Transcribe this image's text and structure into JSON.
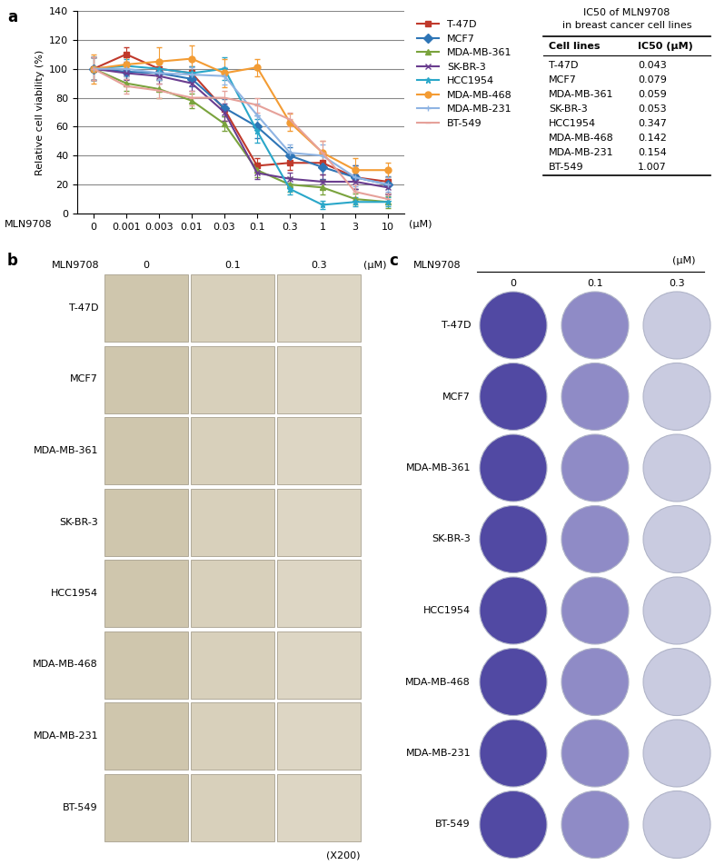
{
  "chart_data": {
    "type": "line",
    "panel": "a",
    "categories": [
      "0",
      "0.001",
      "0.003",
      "0.01",
      "0.03",
      "0.1",
      "0.3",
      "1",
      "3",
      "10"
    ],
    "xlabel": "MLN9708",
    "xunit": "(μM)",
    "ylabel": "Relative cell viability (%)",
    "ylim": [
      0,
      140
    ],
    "yticks": [
      0,
      20,
      40,
      60,
      80,
      100,
      120,
      140
    ],
    "grid": true,
    "legend": "upper left",
    "series": [
      {
        "name": "T-47D",
        "color": "#c0392b",
        "marker": "square",
        "values": [
          100,
          110,
          100,
          97,
          72,
          33,
          35,
          35,
          25,
          22
        ],
        "errors": [
          8,
          5,
          5,
          5,
          8,
          5,
          5,
          8,
          8,
          8
        ]
      },
      {
        "name": "MCF7",
        "color": "#2e75b6",
        "marker": "diamond",
        "values": [
          100,
          98,
          97,
          93,
          73,
          60,
          40,
          32,
          25,
          20
        ],
        "errors": [
          8,
          5,
          5,
          5,
          6,
          8,
          6,
          8,
          8,
          6
        ]
      },
      {
        "name": "MDA-MB-361",
        "color": "#7aa33d",
        "marker": "triangle",
        "values": [
          100,
          90,
          86,
          78,
          62,
          30,
          20,
          18,
          10,
          8
        ],
        "errors": [
          8,
          5,
          6,
          5,
          5,
          5,
          5,
          5,
          4,
          4
        ]
      },
      {
        "name": "SK-BR-3",
        "color": "#6a3d8f",
        "marker": "x",
        "values": [
          100,
          97,
          95,
          90,
          70,
          28,
          24,
          22,
          22,
          18
        ],
        "errors": [
          8,
          5,
          5,
          5,
          6,
          4,
          4,
          5,
          5,
          5
        ]
      },
      {
        "name": "HCC1954",
        "color": "#2aa7c9",
        "marker": "asterisk",
        "values": [
          100,
          102,
          100,
          97,
          100,
          57,
          17,
          6,
          8,
          8
        ],
        "errors": [
          8,
          5,
          5,
          5,
          8,
          8,
          4,
          3,
          3,
          3
        ]
      },
      {
        "name": "MDA-MB-468",
        "color": "#f39c34",
        "marker": "circle",
        "values": [
          100,
          103,
          105,
          107,
          97,
          101,
          63,
          42,
          30,
          30
        ],
        "errors": [
          10,
          5,
          10,
          9,
          10,
          6,
          6,
          8,
          8,
          5
        ]
      },
      {
        "name": "MDA-MB-231",
        "color": "#8fb4e3",
        "marker": "plus",
        "values": [
          100,
          100,
          97,
          96,
          95,
          68,
          42,
          40,
          25,
          20
        ],
        "errors": [
          8,
          5,
          5,
          5,
          6,
          8,
          6,
          8,
          6,
          5
        ]
      },
      {
        "name": "BT-549",
        "color": "#e6a19a",
        "marker": "dash",
        "values": [
          100,
          88,
          85,
          80,
          80,
          75,
          65,
          42,
          15,
          10
        ],
        "errors": [
          8,
          5,
          5,
          5,
          5,
          5,
          5,
          8,
          5,
          4
        ]
      }
    ]
  },
  "table": {
    "title": [
      "IC50 of MLN9708",
      "in breast cancer cell lines"
    ],
    "header": [
      "Cell lines",
      "IC50 (μM)"
    ],
    "rows": [
      [
        "T-47D",
        "0.043"
      ],
      [
        "MCF7",
        "0.079"
      ],
      [
        "MDA-MB-361",
        "0.059"
      ],
      [
        "SK-BR-3",
        "0.053"
      ],
      [
        "HCC1954",
        "0.347"
      ],
      [
        "MDA-MB-468",
        "0.142"
      ],
      [
        "MDA-MB-231",
        "0.154"
      ],
      [
        "BT-549",
        "1.007"
      ]
    ]
  },
  "panel_b": {
    "label": "b",
    "drug": "MLN9708",
    "doses": [
      "0",
      "0.1",
      "0.3"
    ],
    "unit": "(μM)",
    "rows": [
      "T-47D",
      "MCF7",
      "MDA-MB-361",
      "SK-BR-3",
      "HCC1954",
      "MDA-MB-468",
      "MDA-MB-231",
      "BT-549"
    ],
    "magnification": "(X200)"
  },
  "panel_c": {
    "label": "c",
    "drug": "MLN9708",
    "doses": [
      "0",
      "0.1",
      "0.3"
    ],
    "unit": "(μM)",
    "rows": [
      "T-47D",
      "MCF7",
      "MDA-MB-361",
      "SK-BR-3",
      "HCC1954",
      "MDA-MB-468",
      "MDA-MB-231",
      "BT-549"
    ]
  }
}
